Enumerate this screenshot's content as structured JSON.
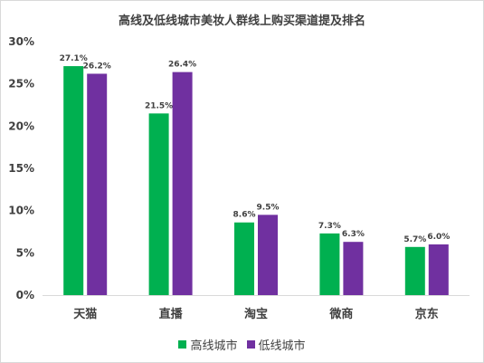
{
  "chart_data": {
    "type": "bar",
    "title": "高线及低线城市美妆人群线上购买渠道提及排名",
    "categories": [
      "天猫",
      "直播",
      "淘宝",
      "微商",
      "京东"
    ],
    "series": [
      {
        "name": "高线城市",
        "color": "#00b050",
        "values": [
          27.1,
          21.5,
          8.6,
          7.3,
          5.7
        ],
        "labels": [
          "27.1%",
          "21.5%",
          "8.6%",
          "7.3%",
          "5.7%"
        ]
      },
      {
        "name": "低线城市",
        "color": "#7030a0",
        "values": [
          26.2,
          26.4,
          9.5,
          6.3,
          6.0
        ],
        "labels": [
          "26.2%",
          "26.4%",
          "9.5%",
          "6.3%",
          "6.0%"
        ]
      }
    ],
    "yticks": [
      "0%",
      "5%",
      "10%",
      "15%",
      "20%",
      "25%",
      "30%"
    ],
    "ylim": [
      0,
      30
    ],
    "xlabel": "",
    "ylabel": "",
    "grid": false,
    "legend_position": "bottom"
  }
}
